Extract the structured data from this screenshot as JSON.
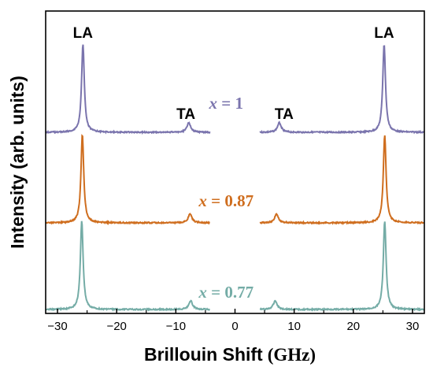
{
  "chart_data": {
    "type": "line",
    "title": "",
    "xlabel_main": "Brillouin Shift",
    "xlabel_unit": "(GHz)",
    "ylabel": "Intensity (arb. units)",
    "xlim": [
      -32,
      32
    ],
    "x_ticks": [
      -30,
      -20,
      -10,
      0,
      10,
      20,
      30
    ],
    "y_ticks_shown": false,
    "grid": false,
    "legend": "none",
    "gap_excluded_range": [
      -4.2,
      4.2
    ],
    "peak_labels": {
      "LA": "LA",
      "TA": "TA"
    },
    "series": [
      {
        "name": "x = 1",
        "label_var": "x",
        "label_value": " = 1",
        "color": "#7a74ad",
        "la_peaks": [
          -25.7,
          25.2
        ],
        "ta_peaks": [
          -7.8,
          7.5
        ],
        "la_height": 1.0,
        "ta_height": 0.11
      },
      {
        "name": "x = 0.87",
        "label_var": "x",
        "label_value": " = 0.87",
        "color": "#cf6e1f",
        "la_peaks": [
          -25.8,
          25.3
        ],
        "ta_peaks": [
          -7.6,
          7.0
        ],
        "la_height": 1.0,
        "ta_height": 0.1
      },
      {
        "name": "x = 0.77",
        "label_var": "x",
        "label_value": " = 0.77",
        "color": "#74aca6",
        "la_peaks": [
          -25.9,
          25.3
        ],
        "ta_peaks": [
          -7.5,
          6.8
        ],
        "la_height": 1.0,
        "ta_height": 0.1
      }
    ]
  }
}
